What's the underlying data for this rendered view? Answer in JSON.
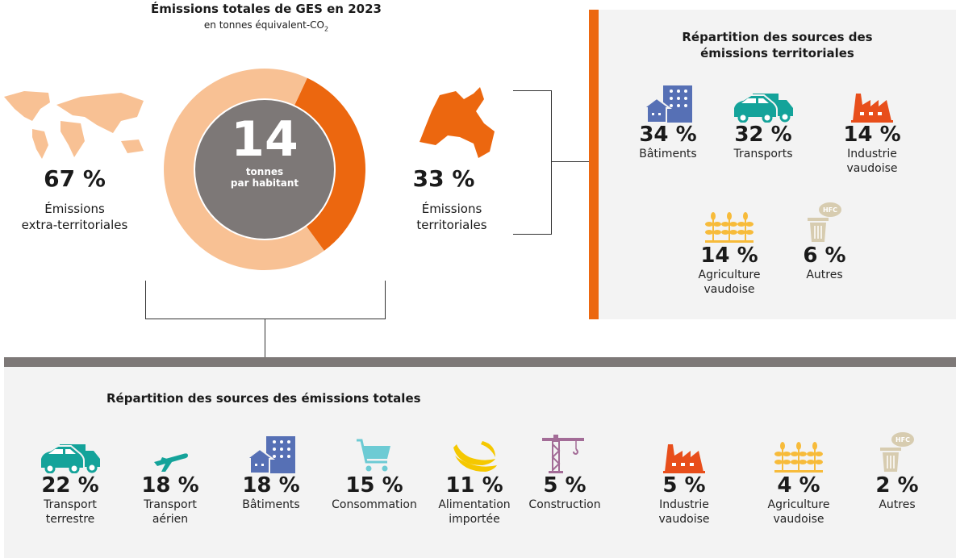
{
  "header": {
    "title": "Émissions totales de GES en 2023",
    "subtitle": "en tonnes équivalent-CO",
    "subtitle_sub": "2"
  },
  "center": {
    "value": "14",
    "unit_line1": "tonnes",
    "unit_line2": "par habitant"
  },
  "left": {
    "pct": "67 %",
    "label1": "Émissions",
    "label2": "extra-territoriales"
  },
  "mid": {
    "pct": "33 %",
    "label1": "Émissions",
    "label2": "territoriales"
  },
  "chart_data": {
    "type": "pie",
    "variant": "donut",
    "categories": [
      "Émissions extra-territoriales",
      "Émissions territoriales"
    ],
    "values": [
      67,
      33
    ],
    "colors": [
      "#f8c194",
      "#ec670f"
    ],
    "center_value": 14
  },
  "territorial": {
    "title1": "Répartition des sources des",
    "title2": "émissions territoriales",
    "items": [
      {
        "pct": "34 %",
        "label": "Bâtiments",
        "icon": "building-icon"
      },
      {
        "pct": "32 %",
        "label": "Transports",
        "icon": "vehicles-icon"
      },
      {
        "pct": "14 %",
        "label": "Industrie vaudoise",
        "icon": "factory-icon"
      },
      {
        "pct": "14 %",
        "label": "Agriculture vaudoise",
        "icon": "wheat-icon"
      },
      {
        "pct": "6 %",
        "label": "Autres",
        "icon": "trash-hfc-icon"
      }
    ]
  },
  "total": {
    "title": "Répartition des sources des émissions totales",
    "items": [
      {
        "pct": "22 %",
        "label": "Transport terrestre",
        "icon": "vehicles-icon"
      },
      {
        "pct": "18 %",
        "label": "Transport aérien",
        "icon": "plane-icon"
      },
      {
        "pct": "18 %",
        "label": "Bâtiments",
        "icon": "building-icon"
      },
      {
        "pct": "15 %",
        "label": "Consommation",
        "icon": "cart-icon"
      },
      {
        "pct": "11 %",
        "label": "Alimentation importée",
        "icon": "banana-icon"
      },
      {
        "pct": "5 %",
        "label": "Construction",
        "icon": "crane-icon"
      },
      {
        "pct": "5 %",
        "label": "Industrie vaudoise",
        "icon": "factory-icon"
      },
      {
        "pct": "4 %",
        "label": "Agriculture vaudoise",
        "icon": "wheat-icon"
      },
      {
        "pct": "2 %",
        "label": "Autres",
        "icon": "trash-hfc-icon"
      }
    ]
  },
  "colors": {
    "accent": "#ec670f",
    "light_orange": "#f8c194",
    "center_gray": "#7d7877",
    "building": "#5670b5",
    "transport": "#14a39a",
    "industry": "#e84e1b",
    "agriculture": "#f7bb3a",
    "other": "#d7ccb0",
    "cart": "#6dcbd4",
    "banana": "#f5c800",
    "crane": "#a36c97"
  }
}
